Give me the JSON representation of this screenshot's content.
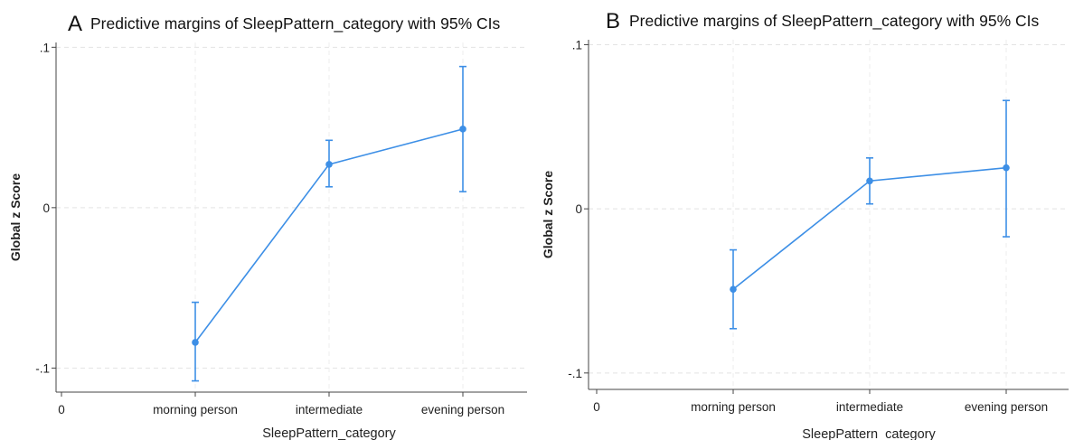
{
  "chart_data": [
    {
      "type": "line",
      "panel_label": "A",
      "title": "Predictive margins of SleepPattern_category with 95% CIs",
      "xlabel": "SleepPattern_category",
      "ylabel": "Global z Score",
      "categories": [
        "morning person",
        "intermediate",
        "evening person"
      ],
      "x_axis_origin_label": "0",
      "yticks": [
        -0.1,
        0,
        0.1
      ],
      "ytick_labels": [
        "-.1",
        "0",
        ".1"
      ],
      "ylim": [
        -0.115,
        0.103
      ],
      "grid": true,
      "series": [
        {
          "values": [
            -0.084,
            0.027,
            0.049
          ],
          "ci_lower": [
            -0.108,
            0.013,
            0.01
          ],
          "ci_upper": [
            -0.059,
            0.042,
            0.088
          ],
          "color": "#3d8fe6"
        }
      ]
    },
    {
      "type": "line",
      "panel_label": "B",
      "title": "Predictive margins of SleepPattern_category with 95% CIs",
      "xlabel": "SleepPattern_category",
      "ylabel": "Global z Score",
      "categories": [
        "morning person",
        "intermediate",
        "evening person"
      ],
      "x_axis_origin_label": "0",
      "yticks": [
        -0.1,
        0,
        0.1
      ],
      "ytick_labels": [
        "-.1",
        "0",
        ".1"
      ],
      "ylim": [
        -0.11,
        0.103
      ],
      "grid": true,
      "series": [
        {
          "values": [
            -0.049,
            0.017,
            0.025
          ],
          "ci_lower": [
            -0.073,
            0.003,
            -0.017
          ],
          "ci_upper": [
            -0.025,
            0.031,
            0.066
          ],
          "color": "#3d8fe6"
        }
      ]
    }
  ]
}
